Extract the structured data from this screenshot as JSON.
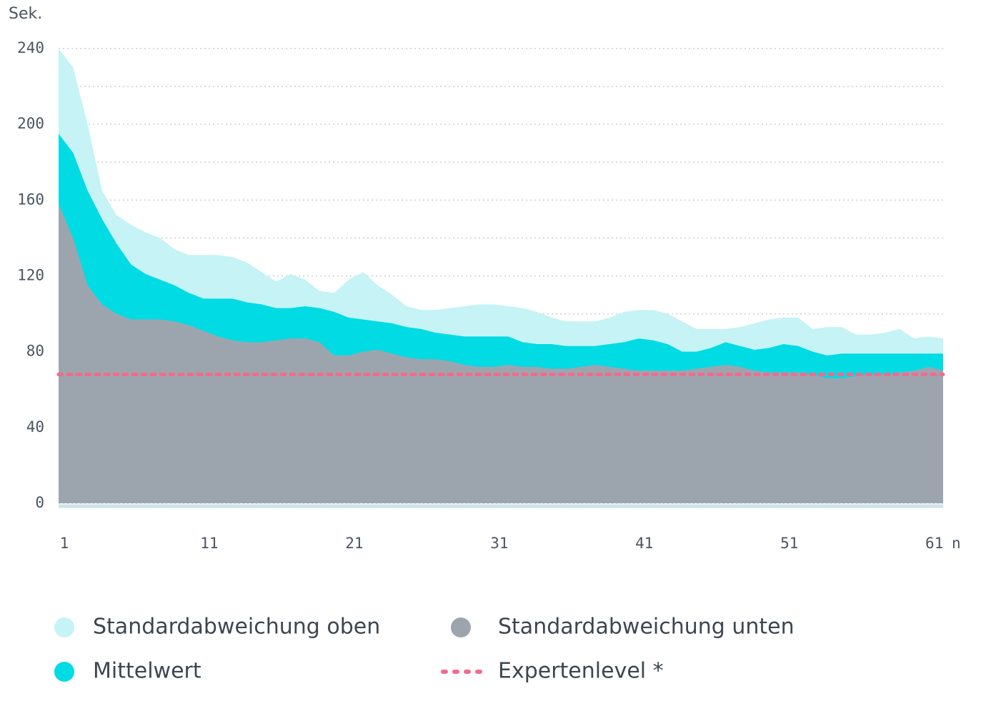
{
  "chart_data": {
    "type": "area",
    "y_label": "Sek.",
    "x_label": "n",
    "x": [
      1,
      2,
      3,
      4,
      5,
      6,
      7,
      8,
      9,
      10,
      11,
      12,
      13,
      14,
      15,
      16,
      17,
      18,
      19,
      20,
      21,
      22,
      23,
      24,
      25,
      26,
      27,
      28,
      29,
      30,
      31,
      32,
      33,
      34,
      35,
      36,
      37,
      38,
      39,
      40,
      41,
      42,
      43,
      44,
      45,
      46,
      47,
      48,
      49,
      50,
      51,
      52,
      53,
      54,
      55,
      56,
      57,
      58,
      59,
      60,
      61,
      62
    ],
    "xlim": [
      1,
      62
    ],
    "xticks": [
      1,
      11,
      21,
      31,
      41,
      51,
      61
    ],
    "ylim": [
      0,
      240
    ],
    "yticks": [
      0,
      40,
      80,
      120,
      160,
      200,
      240
    ],
    "minor_yticks": [
      20,
      60,
      100,
      140,
      180,
      220
    ],
    "grid": true,
    "series": [
      {
        "name": "Standardabweichung oben",
        "color": "#c5f3f6",
        "values": [
          240,
          230,
          200,
          165,
          152,
          147,
          143,
          140,
          134,
          131,
          131,
          131,
          130,
          127,
          122,
          117,
          121,
          118,
          112,
          111,
          118,
          122,
          115,
          110,
          104,
          102,
          102,
          103,
          104,
          105,
          105,
          104,
          103,
          101,
          98,
          96,
          96,
          96,
          98,
          101,
          102,
          102,
          100,
          96,
          92,
          92,
          92,
          93,
          95,
          97,
          98,
          98,
          92,
          93,
          93,
          89,
          89,
          90,
          92,
          87,
          88,
          87
        ]
      },
      {
        "name": "Mittelwert",
        "color": "#00dbe4",
        "values": [
          195,
          185,
          165,
          150,
          137,
          126,
          121,
          118,
          115,
          111,
          108,
          108,
          108,
          106,
          105,
          103,
          103,
          104,
          103,
          101,
          98,
          97,
          96,
          95,
          93,
          92,
          90,
          89,
          88,
          88,
          88,
          88,
          85,
          84,
          84,
          83,
          83,
          83,
          84,
          85,
          87,
          86,
          84,
          80,
          80,
          82,
          85,
          83,
          81,
          82,
          84,
          83,
          80,
          78,
          79,
          79,
          79,
          79,
          79,
          79,
          79,
          79
        ]
      },
      {
        "name": "Standardabweichung unten",
        "color": "#9ca5ae",
        "values": [
          158,
          140,
          115,
          105,
          100,
          97,
          97,
          97,
          96,
          94,
          91,
          88,
          86,
          85,
          85,
          86,
          87,
          87,
          85,
          78,
          78,
          80,
          81,
          79,
          77,
          76,
          76,
          75,
          73,
          72,
          72,
          73,
          72,
          72,
          71,
          71,
          72,
          73,
          72,
          71,
          70,
          70,
          70,
          70,
          71,
          72,
          73,
          72,
          70,
          69,
          69,
          69,
          68,
          66,
          66,
          67,
          68,
          68,
          69,
          70,
          72,
          70
        ]
      }
    ],
    "reference_line": {
      "name": "Expertenlevel *",
      "value": 68,
      "color": "#f06c8f"
    }
  }
}
